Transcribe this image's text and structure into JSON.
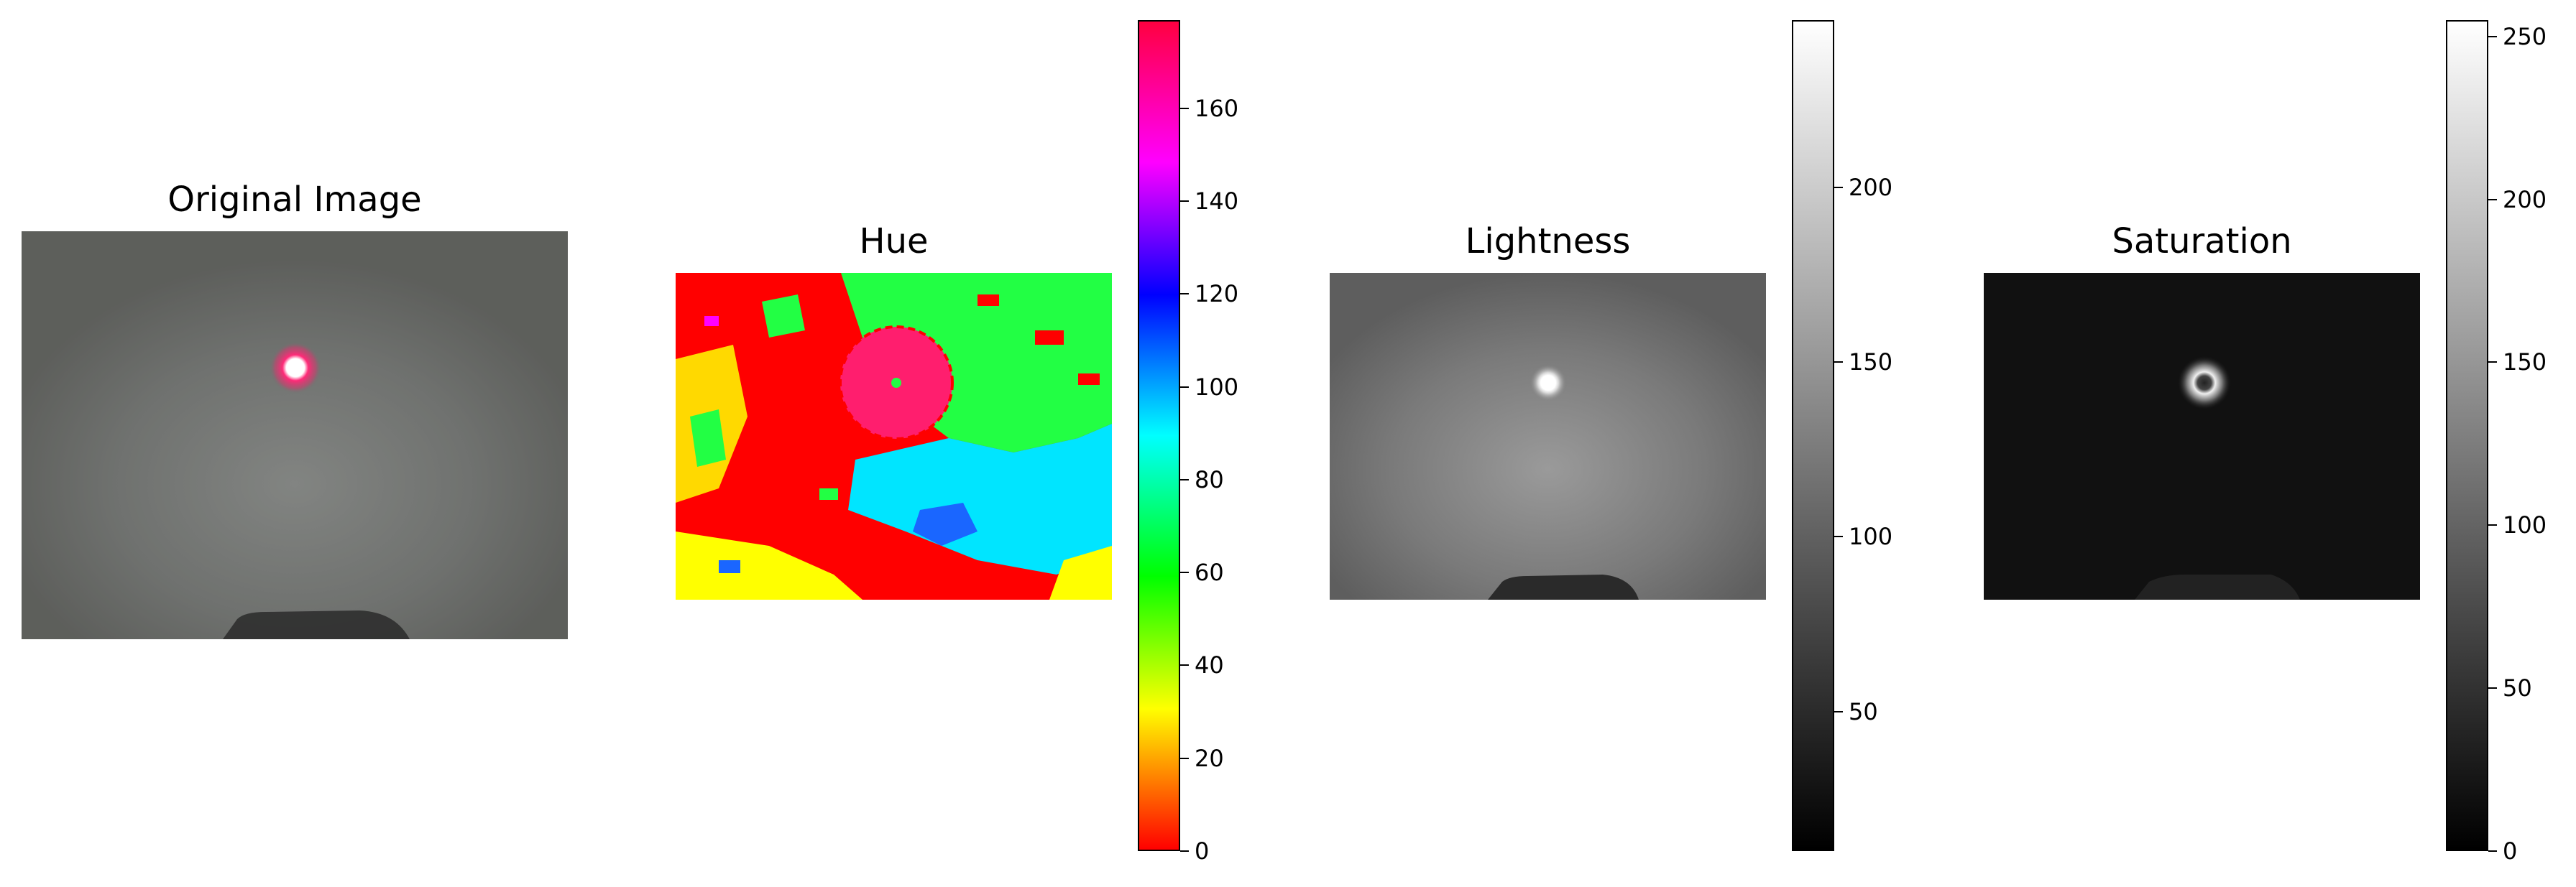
{
  "panels": {
    "original": {
      "title": "Original Image"
    },
    "hue": {
      "title": "Hue",
      "colorbar": {
        "min": 0,
        "max": 179,
        "ticks": [
          0,
          20,
          40,
          60,
          80,
          100,
          120,
          140,
          160
        ],
        "colormap": "hsv"
      }
    },
    "lightness": {
      "title": "Lightness",
      "colorbar": {
        "min": 10,
        "max": 248,
        "ticks": [
          50,
          100,
          150,
          200
        ],
        "colormap": "gray"
      }
    },
    "saturation": {
      "title": "Saturation",
      "colorbar": {
        "min": 0,
        "max": 255,
        "ticks": [
          0,
          50,
          100,
          150,
          200,
          250
        ],
        "colormap": "gray"
      }
    }
  },
  "colors": {
    "laser_dot": "#ff2a78",
    "background_gray": "#6e706d",
    "hue_red": "#ff0000",
    "hue_green": "#22ff44",
    "hue_cyan": "#00e5ff",
    "hue_yellow": "#ffff00",
    "hue_pink": "#ff1e6e"
  }
}
